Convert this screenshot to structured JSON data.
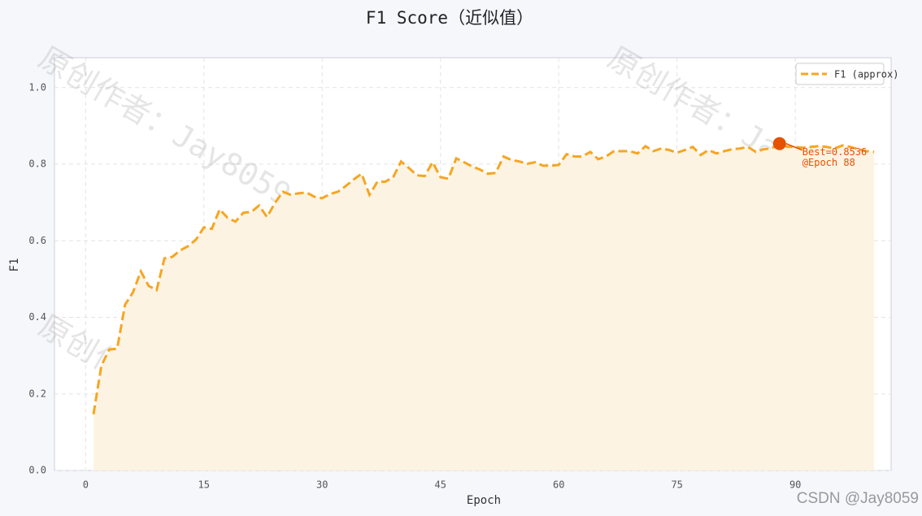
{
  "chart_data": {
    "type": "line",
    "title": "F1 Score（近似值）",
    "x_label": "Epoch",
    "y_label": "F1",
    "x": [
      1,
      2,
      3,
      4,
      5,
      6,
      7,
      8,
      9,
      10,
      11,
      12,
      13,
      14,
      15,
      16,
      17,
      18,
      19,
      20,
      21,
      22,
      23,
      24,
      25,
      26,
      27,
      28,
      29,
      30,
      31,
      32,
      33,
      34,
      35,
      36,
      37,
      38,
      39,
      40,
      41,
      42,
      43,
      44,
      45,
      46,
      47,
      48,
      49,
      50,
      51,
      52,
      53,
      54,
      55,
      56,
      57,
      58,
      59,
      60,
      61,
      62,
      63,
      64,
      65,
      66,
      67,
      68,
      69,
      70,
      71,
      72,
      73,
      74,
      75,
      76,
      77,
      78,
      79,
      80,
      81,
      82,
      83,
      84,
      85,
      86,
      87,
      88,
      89,
      90,
      91,
      92,
      93,
      94,
      95,
      96,
      97,
      98,
      99,
      100
    ],
    "series": [
      {
        "name": "F1 (approx)",
        "color": "#f5a623",
        "fill": "#fdf3e3",
        "values": [
          0.147,
          0.274,
          0.316,
          0.318,
          0.433,
          0.465,
          0.52,
          0.482,
          0.471,
          0.554,
          0.558,
          0.575,
          0.586,
          0.603,
          0.635,
          0.631,
          0.682,
          0.66,
          0.65,
          0.673,
          0.675,
          0.692,
          0.662,
          0.698,
          0.728,
          0.72,
          0.724,
          0.726,
          0.715,
          0.711,
          0.722,
          0.728,
          0.743,
          0.76,
          0.775,
          0.72,
          0.754,
          0.754,
          0.766,
          0.807,
          0.79,
          0.771,
          0.769,
          0.805,
          0.766,
          0.762,
          0.815,
          0.805,
          0.794,
          0.786,
          0.775,
          0.777,
          0.82,
          0.811,
          0.807,
          0.801,
          0.805,
          0.796,
          0.796,
          0.798,
          0.826,
          0.82,
          0.82,
          0.832,
          0.813,
          0.82,
          0.834,
          0.834,
          0.834,
          0.828,
          0.847,
          0.834,
          0.841,
          0.837,
          0.83,
          0.837,
          0.845,
          0.824,
          0.837,
          0.828,
          0.834,
          0.839,
          0.841,
          0.845,
          0.832,
          0.839,
          0.841,
          0.8536,
          0.845,
          0.845,
          0.843,
          0.845,
          0.847,
          0.845,
          0.841,
          0.849,
          0.845,
          0.839,
          0.834,
          0.832
        ]
      }
    ],
    "best_index": 87,
    "best_color": "#e65100",
    "annotation": [
      "Best=0.8536",
      "@Epoch 88"
    ],
    "xlim": [
      -3.95,
      102.15
    ],
    "ylim": [
      0,
      1.078
    ],
    "xticks": [
      0,
      15,
      30,
      45,
      60,
      75,
      90
    ],
    "yticks": [
      {
        "value": 0,
        "label": "0.0"
      },
      0.2,
      0.4,
      0.6,
      0.8,
      {
        "value": 1,
        "label": "1.0"
      }
    ],
    "grid": true,
    "legend": "upper right",
    "watermark": "原创作者：Jay8059",
    "footer": "CSDN @Jay8059"
  }
}
